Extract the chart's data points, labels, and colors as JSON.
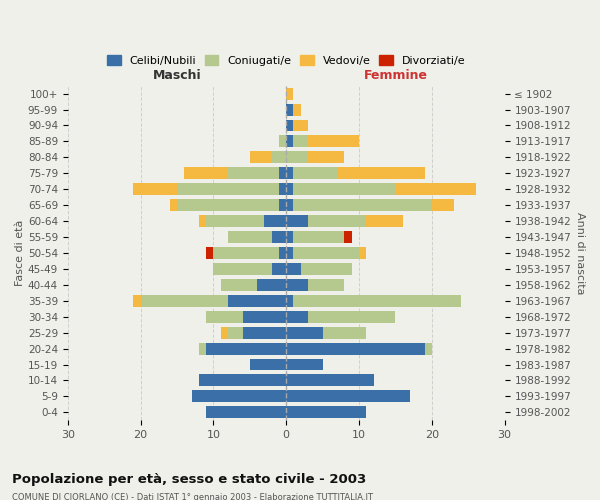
{
  "age_groups": [
    "0-4",
    "5-9",
    "10-14",
    "15-19",
    "20-24",
    "25-29",
    "30-34",
    "35-39",
    "40-44",
    "45-49",
    "50-54",
    "55-59",
    "60-64",
    "65-69",
    "70-74",
    "75-79",
    "80-84",
    "85-89",
    "90-94",
    "95-99",
    "100+"
  ],
  "birth_years": [
    "1998-2002",
    "1993-1997",
    "1988-1992",
    "1983-1987",
    "1978-1982",
    "1973-1977",
    "1968-1972",
    "1963-1967",
    "1958-1962",
    "1953-1957",
    "1948-1952",
    "1943-1947",
    "1938-1942",
    "1933-1937",
    "1928-1932",
    "1923-1927",
    "1918-1922",
    "1913-1917",
    "1908-1912",
    "1903-1907",
    "≤ 1902"
  ],
  "males": {
    "celibinubili": [
      11,
      13,
      12,
      5,
      11,
      6,
      6,
      8,
      4,
      2,
      1,
      2,
      3,
      1,
      1,
      1,
      0,
      0,
      0,
      0,
      0
    ],
    "coniugati": [
      0,
      0,
      0,
      0,
      1,
      2,
      5,
      12,
      5,
      8,
      9,
      6,
      8,
      14,
      14,
      7,
      2,
      1,
      0,
      0,
      0
    ],
    "vedovi": [
      0,
      0,
      0,
      0,
      0,
      1,
      0,
      1,
      0,
      0,
      0,
      0,
      1,
      1,
      6,
      6,
      3,
      0,
      0,
      0,
      0
    ],
    "divorziati": [
      0,
      0,
      0,
      0,
      0,
      0,
      0,
      0,
      0,
      0,
      1,
      0,
      0,
      0,
      0,
      0,
      0,
      0,
      0,
      0,
      0
    ]
  },
  "females": {
    "celibenubili": [
      11,
      17,
      12,
      5,
      19,
      5,
      3,
      1,
      3,
      2,
      1,
      1,
      3,
      1,
      1,
      1,
      0,
      1,
      1,
      1,
      0
    ],
    "coniugate": [
      0,
      0,
      0,
      0,
      1,
      6,
      12,
      23,
      5,
      7,
      9,
      7,
      8,
      19,
      14,
      6,
      3,
      2,
      0,
      0,
      0
    ],
    "vedove": [
      0,
      0,
      0,
      0,
      0,
      0,
      0,
      0,
      0,
      0,
      1,
      0,
      5,
      3,
      11,
      12,
      5,
      7,
      2,
      1,
      1
    ],
    "divorziate": [
      0,
      0,
      0,
      0,
      0,
      0,
      0,
      0,
      0,
      0,
      0,
      1,
      0,
      0,
      0,
      0,
      0,
      0,
      0,
      0,
      0
    ]
  },
  "colors": {
    "celibinubili": "#3a6fa8",
    "coniugati": "#b5c98e",
    "vedovi": "#f5b942",
    "divorziati": "#cc2200"
  },
  "xlim": 30,
  "title": "Popolazione per età, sesso e stato civile - 2003",
  "subtitle": "COMUNE DI CIORLANO (CE) - Dati ISTAT 1° gennaio 2003 - Elaborazione TUTTITALIA.IT",
  "ylabel_left": "Fasce di età",
  "ylabel_right": "Anni di nascita",
  "xlabel_left": "Maschi",
  "xlabel_right": "Femmine",
  "bg_color": "#f0f0eb",
  "grid_color": "#cccccc",
  "legend_labels": [
    "Celibi/Nubili",
    "Coniugati/e",
    "Vedovi/e",
    "Divorziati/e"
  ]
}
